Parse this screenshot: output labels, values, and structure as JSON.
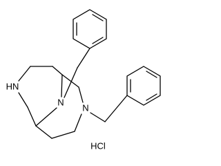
{
  "molecule": {
    "atoms": {
      "amine": "HN",
      "bridge_n": "N",
      "ring_n": "N"
    },
    "salt": "HCl"
  }
}
